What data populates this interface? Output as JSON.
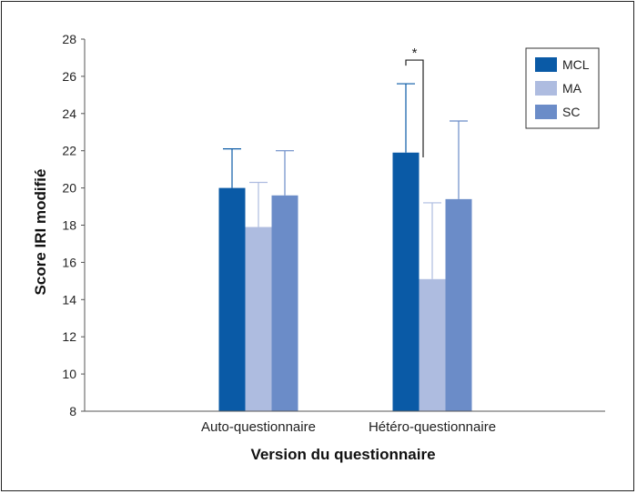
{
  "chart_data": {
    "type": "bar",
    "title": "",
    "xlabel": "Version du questionnaire",
    "ylabel": "Score IRI modifié",
    "ylim": [
      8,
      28
    ],
    "yticks": [
      8,
      10,
      12,
      14,
      16,
      18,
      20,
      22,
      24,
      26,
      28
    ],
    "categories": [
      "Auto-questionnaire",
      "Hétéro-questionnaire"
    ],
    "series": [
      {
        "name": "MCL",
        "color": "#0a5aa6",
        "values": [
          20.0,
          21.9
        ],
        "error_upper": [
          22.1,
          25.6
        ]
      },
      {
        "name": "MA",
        "color": "#aebce0",
        "values": [
          17.9,
          15.1
        ],
        "error_upper": [
          20.3,
          19.2
        ]
      },
      {
        "name": "SC",
        "color": "#6b8cc8",
        "values": [
          19.6,
          19.4
        ],
        "error_upper": [
          22.0,
          23.6
        ]
      }
    ],
    "legend_position": "top-right",
    "grid": false,
    "annotations": [
      {
        "text": "*",
        "between_series": [
          "MCL",
          "MA"
        ],
        "category": "Hétéro-questionnaire"
      }
    ]
  }
}
